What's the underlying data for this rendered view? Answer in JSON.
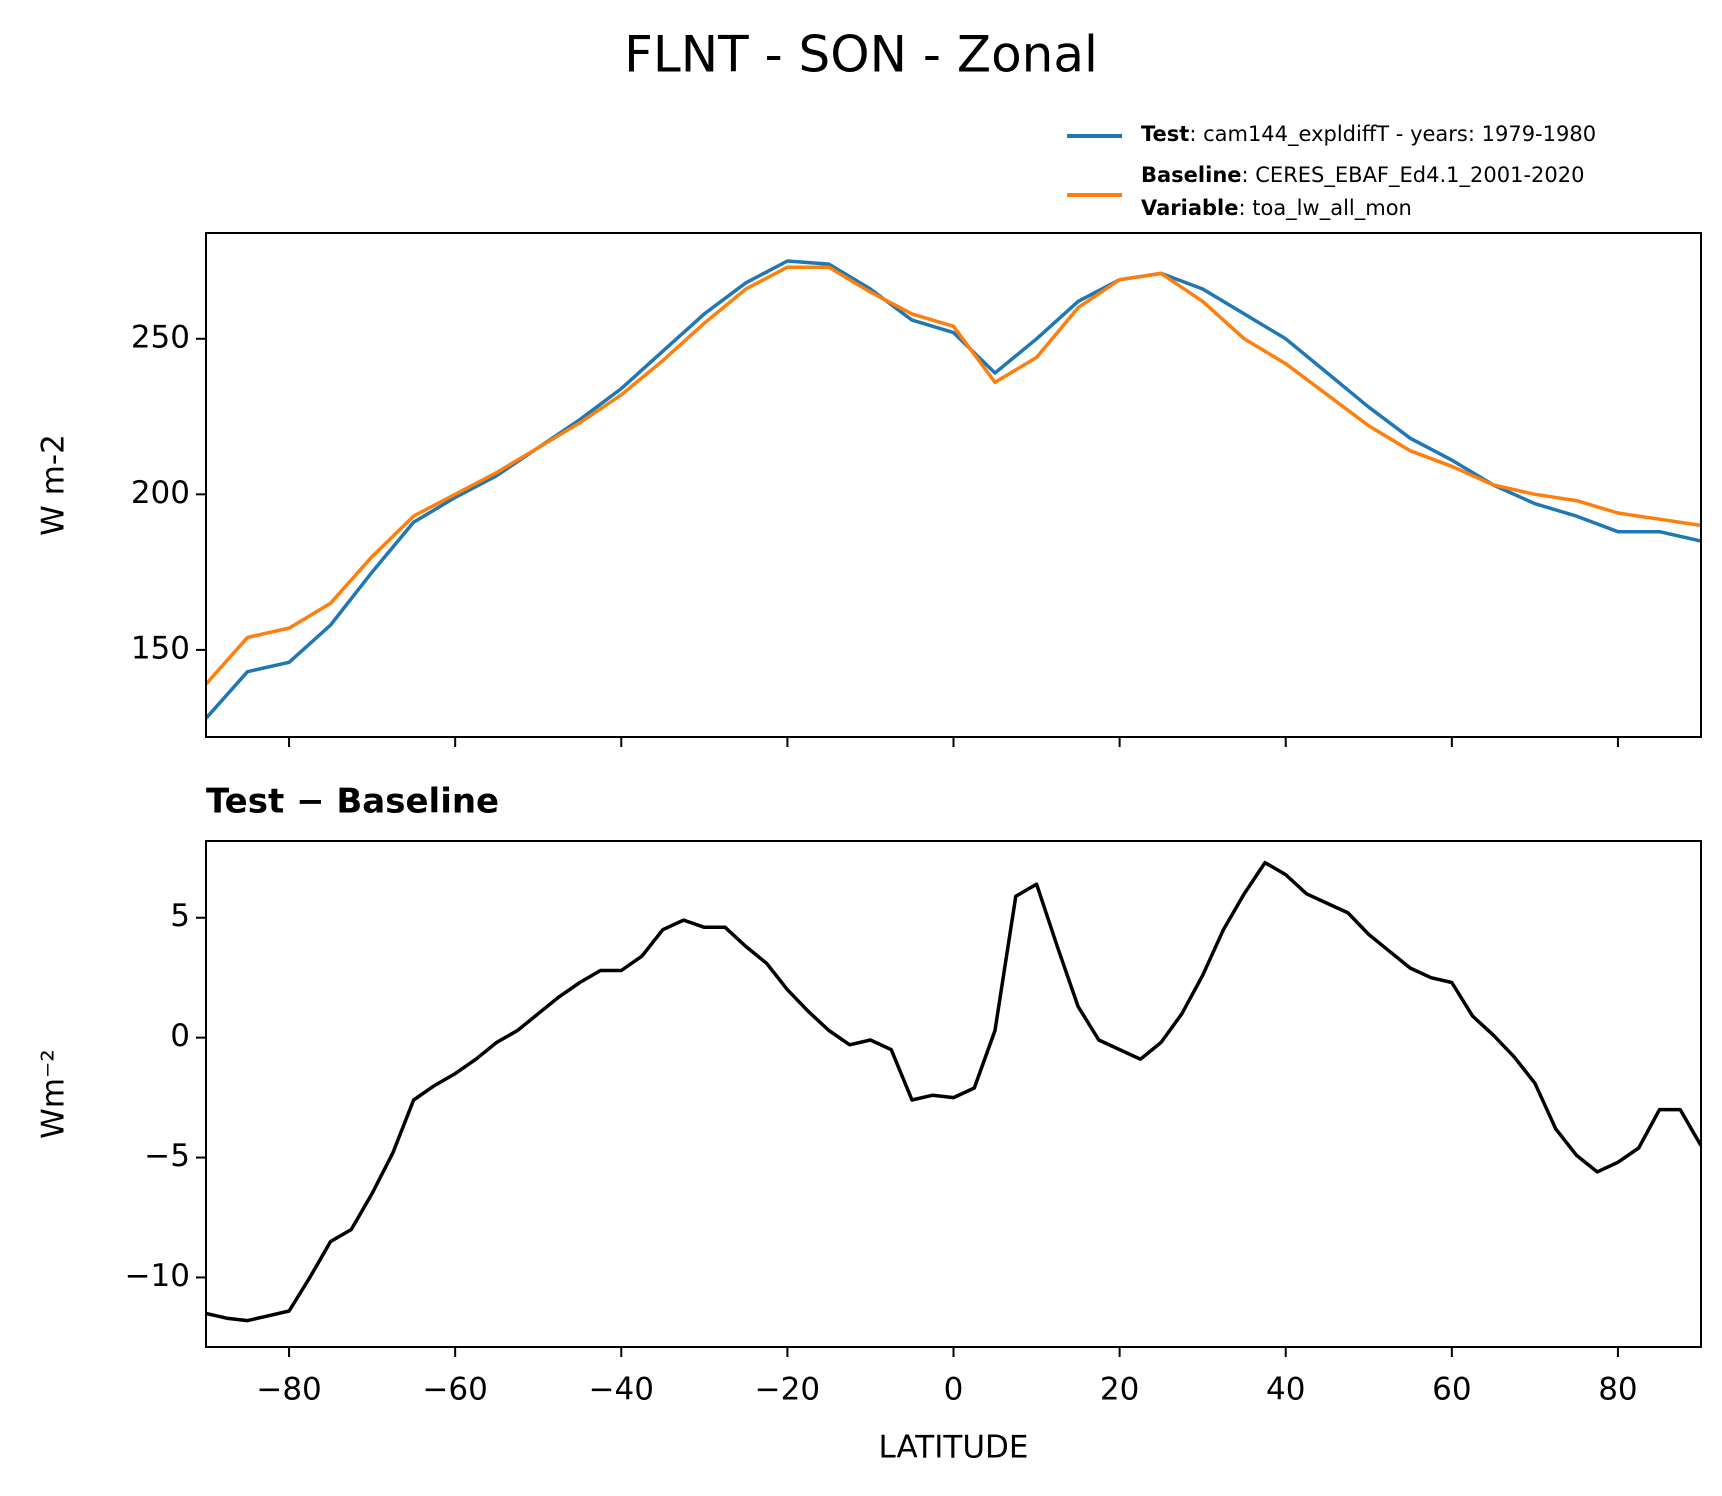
{
  "title": "FLNT - SON - Zonal",
  "legend": {
    "corner": "above-right",
    "extra_name": "Variable",
    "extra_detail": ": toa_lw_all_mon"
  },
  "chart_data": [
    {
      "type": "line",
      "ylabel": "W m-2",
      "xlim": [
        -90,
        90
      ],
      "ylim": [
        122,
        284
      ],
      "yticks": [
        150,
        200,
        250
      ],
      "xticks": [
        -80,
        -60,
        -40,
        -20,
        0,
        20,
        40,
        60,
        80
      ],
      "x": [
        -90,
        -85,
        -80,
        -75,
        -70,
        -65,
        -60,
        -55,
        -50,
        -45,
        -40,
        -35,
        -30,
        -25,
        -20,
        -15,
        -10,
        -5,
        0,
        5,
        10,
        15,
        20,
        25,
        30,
        35,
        40,
        45,
        50,
        55,
        60,
        65,
        70,
        75,
        80,
        85,
        90
      ],
      "series": [
        {
          "name": "Test",
          "detail": ": cam144_expldiffT - years: 1979-1980",
          "color": "#1f77b4",
          "values": [
            128,
            143,
            146,
            158,
            175,
            191,
            199,
            206,
            215,
            224,
            234,
            246,
            258,
            268,
            275,
            274,
            266,
            256,
            252,
            239,
            250,
            262,
            269,
            271,
            266,
            258,
            250,
            239,
            228,
            218,
            211,
            203,
            197,
            193,
            188,
            188,
            185
          ]
        },
        {
          "name": "Baseline",
          "detail": ": CERES_EBAF_Ed4.1_2001-2020",
          "color": "#ff7f0e",
          "values": [
            139,
            154,
            157,
            165,
            180,
            193,
            200,
            207,
            215,
            223,
            232,
            243,
            255,
            266,
            273,
            273,
            265,
            258,
            254,
            236,
            244,
            260,
            269,
            271,
            262,
            250,
            242,
            232,
            222,
            214,
            209,
            203,
            200,
            198,
            194,
            192,
            190
          ]
        }
      ]
    },
    {
      "type": "line",
      "title": "Test − Baseline",
      "xlabel": "LATITUDE",
      "ylabel": "Wm⁻²",
      "xlim": [
        -90,
        90
      ],
      "ylim": [
        -12.9,
        8.2
      ],
      "yticks": [
        {
          "value": -10,
          "label": "−10"
        },
        {
          "value": -5,
          "label": "−5"
        },
        0,
        5
      ],
      "xticks": [
        {
          "value": -80,
          "label": "−80"
        },
        {
          "value": -60,
          "label": "−60"
        },
        {
          "value": -40,
          "label": "−40"
        },
        {
          "value": -20,
          "label": "−20"
        },
        0,
        20,
        40,
        60,
        80
      ],
      "x": [
        -90,
        -87.5,
        -85,
        -82.5,
        -80,
        -77.5,
        -75,
        -72.5,
        -70,
        -67.5,
        -65,
        -62.5,
        -60,
        -57.5,
        -55,
        -52.5,
        -50,
        -47.5,
        -45,
        -42.5,
        -40,
        -37.5,
        -35,
        -32.5,
        -30,
        -27.5,
        -25,
        -22.5,
        -20,
        -17.5,
        -15,
        -12.5,
        -10,
        -7.5,
        -5,
        -2.5,
        0,
        2.5,
        5,
        7.5,
        10,
        12.5,
        15,
        17.5,
        20,
        22.5,
        25,
        27.5,
        30,
        32.5,
        35,
        37.5,
        40,
        42.5,
        45,
        47.5,
        50,
        52.5,
        55,
        57.5,
        60,
        62.5,
        65,
        67.5,
        70,
        72.5,
        75,
        77.5,
        80,
        82.5,
        85,
        87.5,
        90
      ],
      "series": [
        {
          "color": "#000000",
          "values": [
            -11.5,
            -11.7,
            -11.8,
            -11.6,
            -11.4,
            -10,
            -8.5,
            -8,
            -6.5,
            -4.8,
            -2.6,
            -2,
            -1.5,
            -0.9,
            -0.2,
            0.3,
            1,
            1.7,
            2.3,
            2.8,
            2.8,
            3.4,
            4.5,
            4.9,
            4.6,
            4.6,
            3.8,
            3.1,
            2,
            1.1,
            0.3,
            -0.3,
            -0.1,
            -0.5,
            -2.6,
            -2.4,
            -2.5,
            -2.1,
            0.3,
            5.9,
            6.4,
            3.8,
            1.3,
            -0.1,
            -0.5,
            -0.9,
            -0.2,
            1,
            2.6,
            4.5,
            6,
            7.3,
            6.8,
            6,
            5.6,
            5.2,
            4.3,
            3.6,
            2.9,
            2.5,
            2.3,
            0.9,
            0.1,
            -0.8,
            -1.9,
            -3.8,
            -4.9,
            -5.6,
            -5.2,
            -4.6,
            -3,
            -3,
            -4.5
          ]
        }
      ]
    }
  ]
}
